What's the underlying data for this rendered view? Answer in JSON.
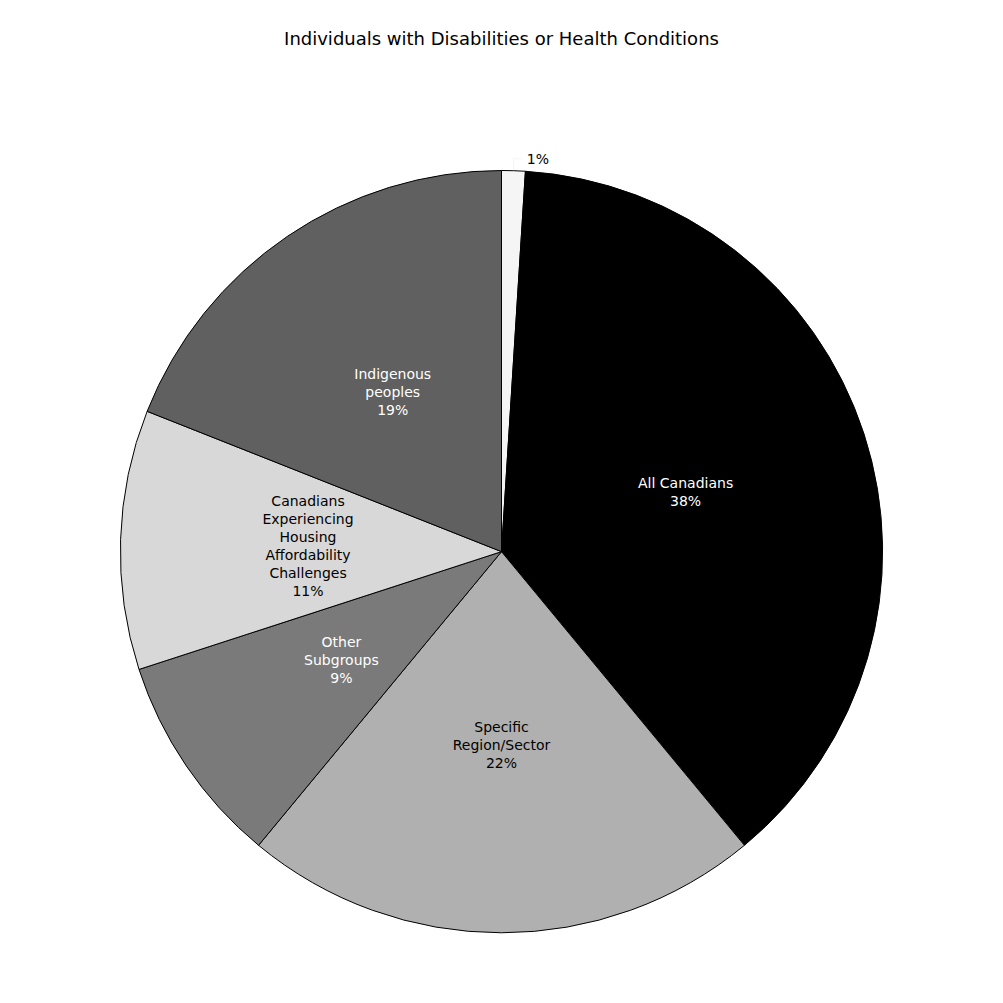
{
  "chart_data": {
    "type": "pie",
    "title": "Individuals with Disabilities or Health Conditions",
    "categories": [
      null,
      "All Canadians",
      "Specific\nRegion/Sector",
      "Other\nSubgroups",
      "Canadians\nExperiencing\nHousing\nAffordability\nChallenges",
      "Indigenous\npeoples"
    ],
    "values": [
      1,
      38,
      22,
      9,
      11,
      19
    ],
    "value_labels": [
      "1%",
      "38%",
      "22%",
      "9%",
      "11%",
      "19%"
    ],
    "colors": [
      "#f5f5f5",
      "#000000",
      "#b0b0b0",
      "#7a7a7a",
      "#d8d8d8",
      "#606060"
    ],
    "data_labels": true,
    "legend": false
  }
}
